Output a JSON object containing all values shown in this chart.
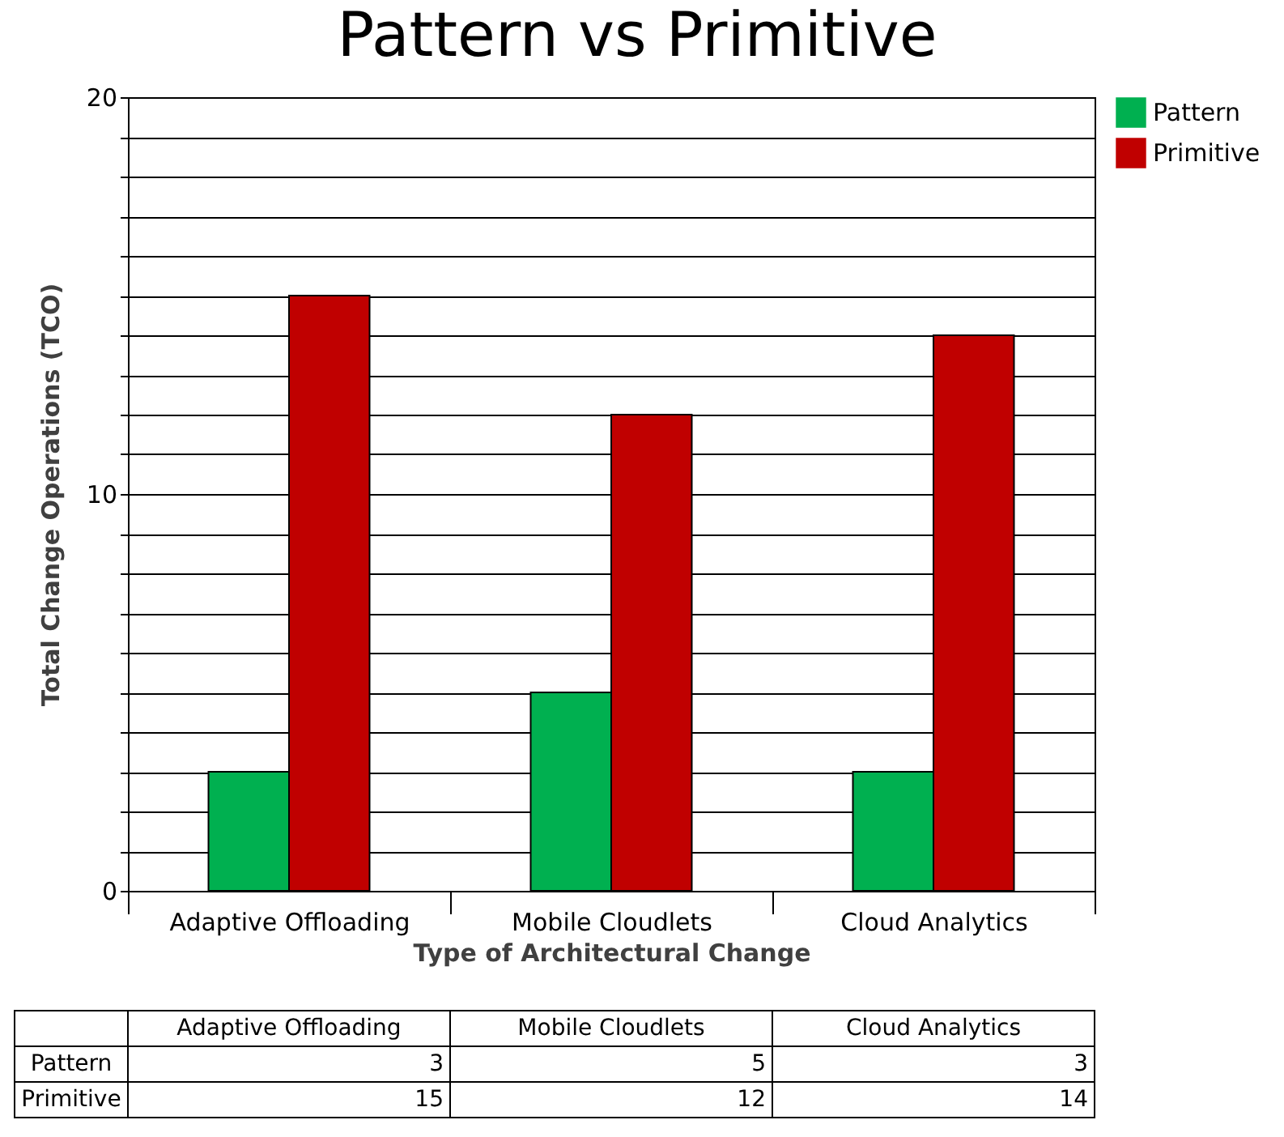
{
  "chart_data": {
    "type": "bar",
    "title": "Pattern vs Primitive",
    "xlabel": "Type of Architectural Change",
    "ylabel": "Total Change Operations (TCO)",
    "categories": [
      "Adaptive Offloading",
      "Mobile Cloudlets",
      "Cloud Analytics"
    ],
    "series": [
      {
        "name": "Pattern",
        "color": "#00b050",
        "values": [
          3,
          5,
          3
        ]
      },
      {
        "name": "Primitive",
        "color": "#c00000",
        "values": [
          15,
          12,
          14
        ]
      }
    ],
    "ylim": [
      0,
      20
    ],
    "yticks": [
      0,
      {
        "value": 1,
        "label": null
      },
      {
        "value": 2,
        "label": null
      },
      {
        "value": 3,
        "label": null
      },
      {
        "value": 4,
        "label": null
      },
      {
        "value": 5,
        "label": null
      },
      {
        "value": 6,
        "label": null
      },
      {
        "value": 7,
        "label": null
      },
      {
        "value": 8,
        "label": null
      },
      {
        "value": 9,
        "label": null
      },
      10,
      {
        "value": 11,
        "label": null
      },
      {
        "value": 12,
        "label": null
      },
      {
        "value": 13,
        "label": null
      },
      {
        "value": 14,
        "label": null
      },
      {
        "value": 15,
        "label": null
      },
      {
        "value": 16,
        "label": null
      },
      {
        "value": 17,
        "label": null
      },
      {
        "value": 18,
        "label": null
      },
      {
        "value": 19,
        "label": null
      },
      20
    ],
    "grid": "y",
    "legend": "right",
    "data_labels": true
  }
}
